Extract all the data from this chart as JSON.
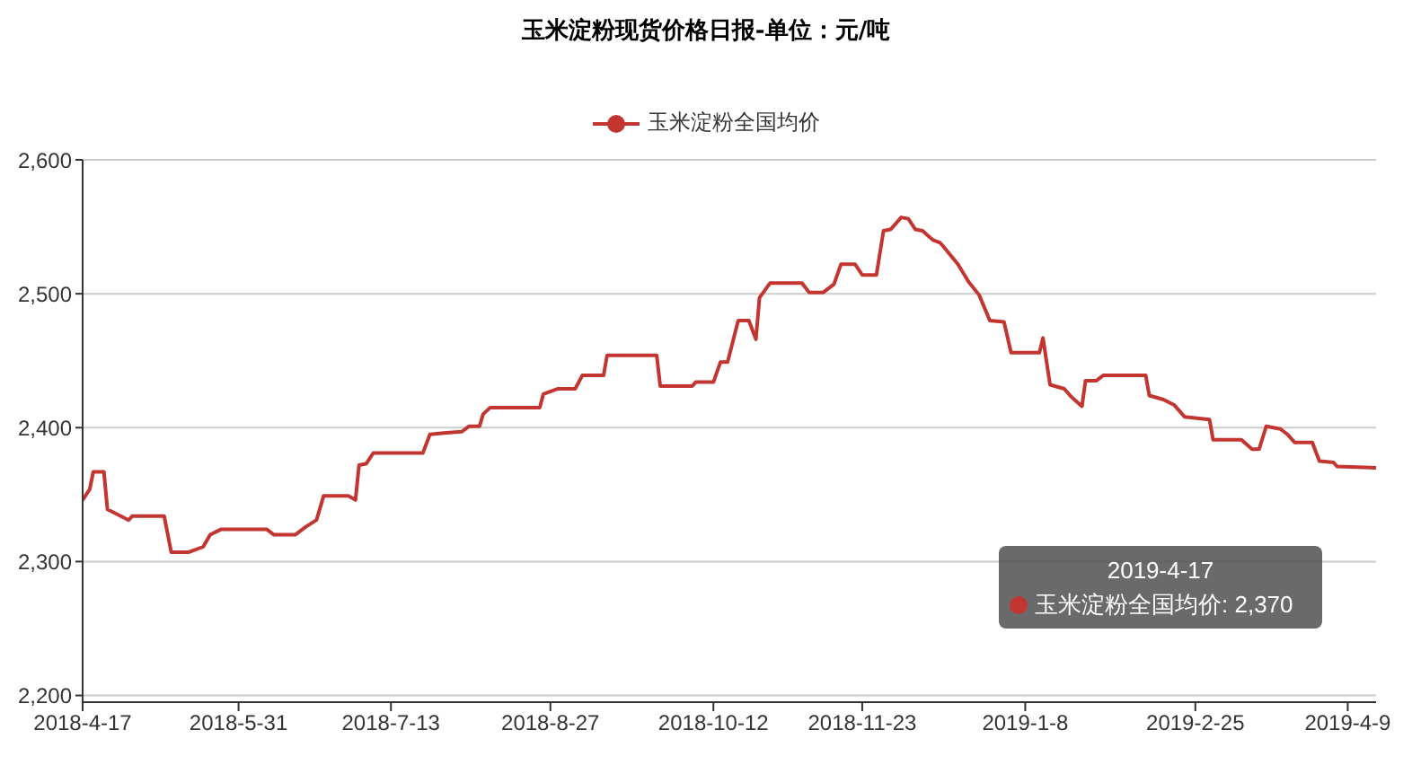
{
  "chart_data": {
    "type": "line",
    "title": "玉米淀粉现货价格日报-单位：元/吨",
    "x": [
      "2018-04-17",
      "2018-04-19",
      "2018-04-20",
      "2018-04-23",
      "2018-04-24",
      "2018-04-27",
      "2018-04-30",
      "2018-05-01",
      "2018-05-10",
      "2018-05-12",
      "2018-05-17",
      "2018-05-21",
      "2018-05-23",
      "2018-05-26",
      "2018-06-08",
      "2018-06-10",
      "2018-06-16",
      "2018-06-19",
      "2018-06-22",
      "2018-06-24",
      "2018-07-01",
      "2018-07-03",
      "2018-07-04",
      "2018-07-06",
      "2018-07-08",
      "2018-07-22",
      "2018-07-24",
      "2018-07-28",
      "2018-08-02",
      "2018-08-04",
      "2018-08-07",
      "2018-08-08",
      "2018-08-10",
      "2018-08-24",
      "2018-08-25",
      "2018-08-29",
      "2018-09-03",
      "2018-09-05",
      "2018-09-11",
      "2018-09-12",
      "2018-09-26",
      "2018-09-27",
      "2018-10-06",
      "2018-10-07",
      "2018-10-12",
      "2018-10-14",
      "2018-10-16",
      "2018-10-19",
      "2018-10-22",
      "2018-10-24",
      "2018-10-25",
      "2018-10-28",
      "2018-11-06",
      "2018-11-08",
      "2018-11-12",
      "2018-11-15",
      "2018-11-17",
      "2018-11-21",
      "2018-11-23",
      "2018-11-27",
      "2018-11-29",
      "2018-12-01",
      "2018-12-04",
      "2018-12-06",
      "2018-12-08",
      "2018-12-10",
      "2018-12-13",
      "2018-12-15",
      "2018-12-16",
      "2018-12-20",
      "2018-12-23",
      "2018-12-26",
      "2018-12-29",
      "2019-01-02",
      "2019-01-04",
      "2019-01-12",
      "2019-01-13",
      "2019-01-15",
      "2019-01-19",
      "2019-01-21",
      "2019-01-24",
      "2019-01-25",
      "2019-01-28",
      "2019-01-30",
      "2019-02-11",
      "2019-02-12",
      "2019-02-16",
      "2019-02-19",
      "2019-02-22",
      "2019-03-01",
      "2019-03-02",
      "2019-03-10",
      "2019-03-13",
      "2019-03-15",
      "2019-03-17",
      "2019-03-21",
      "2019-03-23",
      "2019-03-25",
      "2019-03-30",
      "2019-04-01",
      "2019-04-05",
      "2019-04-06",
      "2019-04-17"
    ],
    "series": [
      {
        "name": "玉米淀粉全国均价",
        "color": "#c23531",
        "values": [
          2346,
          2354,
          2367,
          2367,
          2339,
          2335,
          2331,
          2334,
          2334,
          2307,
          2307,
          2311,
          2320,
          2324,
          2324,
          2320,
          2320,
          2326,
          2331,
          2349,
          2349,
          2346,
          2372,
          2373,
          2381,
          2381,
          2395,
          2396,
          2397,
          2401,
          2401,
          2410,
          2415,
          2415,
          2425,
          2429,
          2429,
          2439,
          2439,
          2454,
          2454,
          2431,
          2431,
          2434,
          2434,
          2449,
          2449,
          2480,
          2480,
          2466,
          2497,
          2508,
          2508,
          2501,
          2501,
          2507,
          2522,
          2522,
          2514,
          2514,
          2547,
          2548,
          2557,
          2556,
          2548,
          2547,
          2540,
          2538,
          2535,
          2522,
          2509,
          2499,
          2480,
          2479,
          2456,
          2456,
          2467,
          2432,
          2429,
          2423,
          2416,
          2435,
          2435,
          2439,
          2439,
          2424,
          2421,
          2417,
          2408,
          2406,
          2391,
          2391,
          2384,
          2384,
          2401,
          2399,
          2395,
          2389,
          2389,
          2375,
          2374,
          2371,
          2370
        ]
      }
    ],
    "xlim": [
      "2018-04-17",
      "2019-04-17"
    ],
    "xticks": [
      {
        "value": "2018-04-17",
        "label": "2018-4-17"
      },
      {
        "value": "2018-05-31",
        "label": "2018-5-31"
      },
      {
        "value": "2018-07-13",
        "label": "2018-7-13"
      },
      {
        "value": "2018-08-27",
        "label": "2018-8-27"
      },
      {
        "value": "2018-10-12",
        "label": "2018-10-12"
      },
      {
        "value": "2018-11-23",
        "label": "2018-11-23"
      },
      {
        "value": "2019-01-08",
        "label": "2019-1-8"
      },
      {
        "value": "2019-02-25",
        "label": "2019-2-25"
      },
      {
        "value": "2019-04-09",
        "label": "2019-4-9"
      }
    ],
    "ylim": [
      2195,
      2600
    ],
    "yticks": [
      {
        "value": 2200,
        "label": "2,200"
      },
      {
        "value": 2300,
        "label": "2,300"
      },
      {
        "value": 2400,
        "label": "2,400"
      },
      {
        "value": 2500,
        "label": "2,500"
      },
      {
        "value": 2600,
        "label": "2,600"
      }
    ],
    "grid": "y",
    "legend": "top",
    "marker": "none",
    "line_style": "solid",
    "annotations": [
      "2019-4-17",
      "玉米淀粉全国均价: 2,370"
    ]
  }
}
